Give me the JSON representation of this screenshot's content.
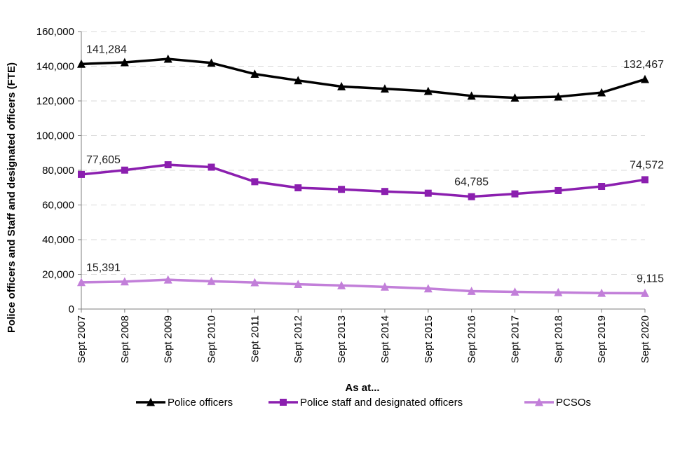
{
  "chart_data": {
    "type": "line",
    "title": "",
    "xlabel": "As at...",
    "ylabel": "Police officers and Staff and designated officers (FTE)",
    "ylim": [
      0,
      160000
    ],
    "yticks": [
      0,
      20000,
      40000,
      60000,
      80000,
      100000,
      120000,
      140000,
      160000
    ],
    "ytick_labels": [
      "0",
      "20,000",
      "40,000",
      "60,000",
      "80,000",
      "100,000",
      "120,000",
      "140,000",
      "160,000"
    ],
    "grid": true,
    "legend_position": "bottom",
    "categories": [
      "Sept 2007",
      "Sept 2008",
      "Sept 2009",
      "Sept 2010",
      "Sept 2011",
      "Sept 2012",
      "Sept 2013",
      "Sept 2014",
      "Sept 2015",
      "Sept 2016",
      "Sept 2017",
      "Sept 2018",
      "Sept 2019",
      "Sept 2020"
    ],
    "series": [
      {
        "name": "Police officers",
        "color": "#000000",
        "marker": "triangle",
        "values": [
          141284,
          142200,
          144200,
          141900,
          135500,
          131800,
          128300,
          127000,
          125600,
          122900,
          121800,
          122400,
          124800,
          132467
        ]
      },
      {
        "name": "Police staff and designated officers",
        "color": "#8b1faf",
        "marker": "square",
        "values": [
          77605,
          80100,
          83200,
          81800,
          73400,
          69900,
          69000,
          67800,
          66800,
          64785,
          66400,
          68300,
          70700,
          74572
        ]
      },
      {
        "name": "PCSOs",
        "color": "#c27fd9",
        "marker": "triangle",
        "values": [
          15391,
          15800,
          16900,
          16000,
          15300,
          14300,
          13600,
          12800,
          11800,
          10300,
          9900,
          9600,
          9200,
          9115
        ]
      }
    ],
    "annotations": [
      {
        "series": 0,
        "index": 0,
        "text": "141,284",
        "anchor": "start"
      },
      {
        "series": 0,
        "index": 13,
        "text": "132,467",
        "anchor": "end"
      },
      {
        "series": 1,
        "index": 0,
        "text": "77,605",
        "anchor": "start"
      },
      {
        "series": 1,
        "index": 9,
        "text": "64,785",
        "anchor": "middle"
      },
      {
        "series": 1,
        "index": 13,
        "text": "74,572",
        "anchor": "end"
      },
      {
        "series": 2,
        "index": 0,
        "text": "15,391",
        "anchor": "start"
      },
      {
        "series": 2,
        "index": 13,
        "text": "9,115",
        "anchor": "end"
      }
    ]
  }
}
